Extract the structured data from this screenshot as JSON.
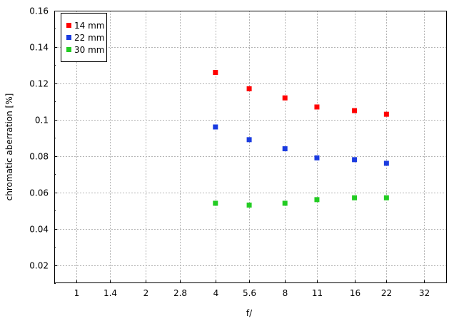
{
  "chart_data": {
    "type": "scatter",
    "title": "",
    "xlabel": "f/",
    "ylabel": "chromatic  aberration [%]",
    "x_scale": "log2",
    "x_ticks": [
      1,
      1.4,
      2,
      2.8,
      4,
      5.6,
      8,
      11,
      16,
      22,
      32
    ],
    "x_tick_labels": [
      "1",
      "1.4",
      "2",
      "2.8",
      "4",
      "5.6",
      "8",
      "11",
      "16",
      "22",
      "32"
    ],
    "xlim": [
      0.8,
      45
    ],
    "ylim": [
      0.01,
      0.16
    ],
    "y_ticks": [
      0.02,
      0.04,
      0.06,
      0.08,
      0.1,
      0.12,
      0.14,
      0.16
    ],
    "y_tick_labels": [
      "0.02",
      "0.04",
      "0.06",
      "0.08",
      "0.1",
      "0.12",
      "0.14",
      "0.16"
    ],
    "grid": true,
    "legend_position": "top-left",
    "x": [
      4,
      5.6,
      8,
      11,
      16,
      22
    ],
    "series": [
      {
        "name": "14 mm",
        "color": "#ff0000",
        "values": [
          0.126,
          0.117,
          0.112,
          0.107,
          0.105,
          0.103
        ]
      },
      {
        "name": "22 mm",
        "color": "#1a3be0",
        "values": [
          0.096,
          0.089,
          0.084,
          0.079,
          0.078,
          0.076
        ]
      },
      {
        "name": "30 mm",
        "color": "#22cc22",
        "values": [
          0.054,
          0.053,
          0.054,
          0.056,
          0.057,
          0.057
        ]
      }
    ]
  }
}
